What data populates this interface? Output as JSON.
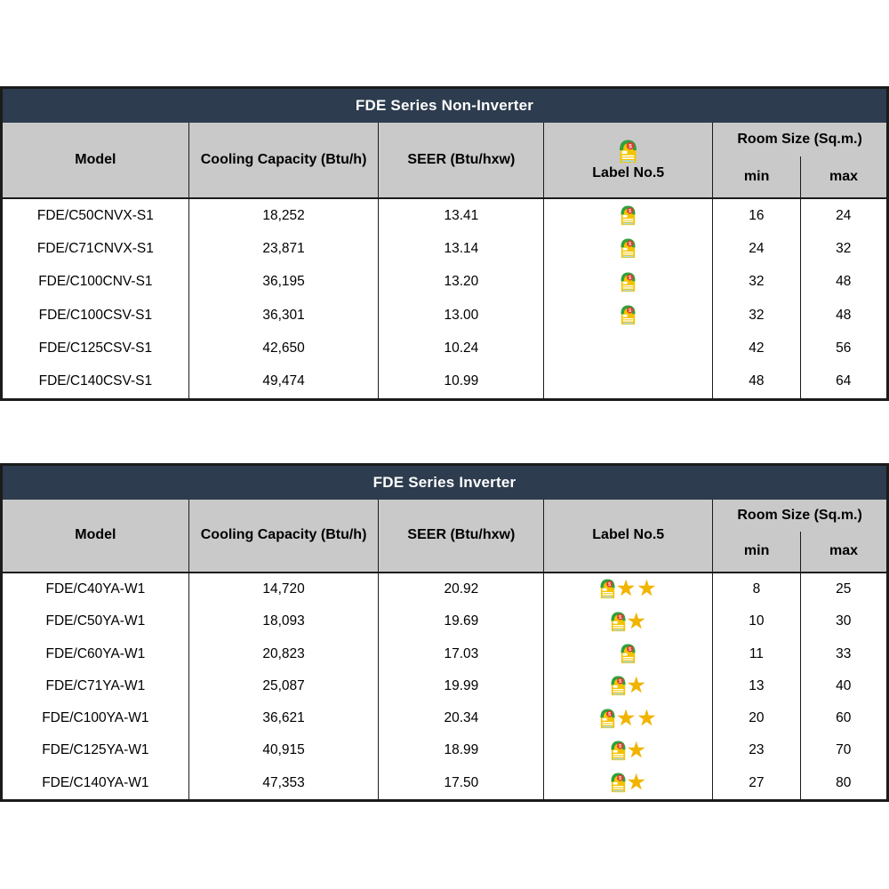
{
  "colors": {
    "title_bar_bg": "#2d3c4e",
    "title_text": "#ffffff",
    "header_bg": "#c9c9c9",
    "border": "#1b1b1b",
    "text": "#000000",
    "star_gold": "#f1b400",
    "label_yellow": "#f3c300",
    "label_green": "#2fa23c",
    "label_red": "#e23b2e",
    "label_stripe_blue": "#a9daeb"
  },
  "icons": {
    "energy_label_name": "energy-label-no5-icon",
    "star_glyph": "★"
  },
  "tables": [
    {
      "title": "FDE Series Non-Inverter",
      "header": {
        "model": "Model",
        "cooling": "Cooling Capacity (Btu/h)",
        "seer": "SEER (Btu/hxw)",
        "label": "Label No.5",
        "label_icon": true,
        "room": "Room Size (Sq.m.)",
        "min": "min",
        "max": "max"
      },
      "rows": [
        {
          "model": "FDE/C50CNVX-S1",
          "cooling": "18,252",
          "seer": "13.41",
          "label5": true,
          "stars": 0,
          "min": "16",
          "max": "24"
        },
        {
          "model": "FDE/C71CNVX-S1",
          "cooling": "23,871",
          "seer": "13.14",
          "label5": true,
          "stars": 0,
          "min": "24",
          "max": "32"
        },
        {
          "model": "FDE/C100CNV-S1",
          "cooling": "36,195",
          "seer": "13.20",
          "label5": true,
          "stars": 0,
          "min": "32",
          "max": "48"
        },
        {
          "model": "FDE/C100CSV-S1",
          "cooling": "36,301",
          "seer": "13.00",
          "label5": true,
          "stars": 0,
          "min": "32",
          "max": "48"
        },
        {
          "model": "FDE/C125CSV-S1",
          "cooling": "42,650",
          "seer": "10.24",
          "label5": false,
          "stars": 0,
          "min": "42",
          "max": "56"
        },
        {
          "model": "FDE/C140CSV-S1",
          "cooling": "49,474",
          "seer": "10.99",
          "label5": false,
          "stars": 0,
          "min": "48",
          "max": "64"
        }
      ]
    },
    {
      "title": "FDE Series Inverter",
      "header": {
        "model": "Model",
        "cooling": "Cooling Capacity (Btu/h)",
        "seer": "SEER (Btu/hxw)",
        "label": "Label No.5",
        "label_icon": false,
        "room": "Room Size (Sq.m.)",
        "min": "min",
        "max": "max"
      },
      "rows": [
        {
          "model": "FDE/C40YA-W1",
          "cooling": "14,720",
          "seer": "20.92",
          "label5": true,
          "stars": 2,
          "min": "8",
          "max": "25"
        },
        {
          "model": "FDE/C50YA-W1",
          "cooling": "18,093",
          "seer": "19.69",
          "label5": true,
          "stars": 1,
          "min": "10",
          "max": "30"
        },
        {
          "model": "FDE/C60YA-W1",
          "cooling": "20,823",
          "seer": "17.03",
          "label5": true,
          "stars": 0,
          "min": "11",
          "max": "33"
        },
        {
          "model": "FDE/C71YA-W1",
          "cooling": "25,087",
          "seer": "19.99",
          "label5": true,
          "stars": 1,
          "min": "13",
          "max": "40"
        },
        {
          "model": "FDE/C100YA-W1",
          "cooling": "36,621",
          "seer": "20.34",
          "label5": true,
          "stars": 2,
          "min": "20",
          "max": "60"
        },
        {
          "model": "FDE/C125YA-W1",
          "cooling": "40,915",
          "seer": "18.99",
          "label5": true,
          "stars": 1,
          "min": "23",
          "max": "70"
        },
        {
          "model": "FDE/C140YA-W1",
          "cooling": "47,353",
          "seer": "17.50",
          "label5": true,
          "stars": 1,
          "min": "27",
          "max": "80"
        }
      ]
    }
  ]
}
